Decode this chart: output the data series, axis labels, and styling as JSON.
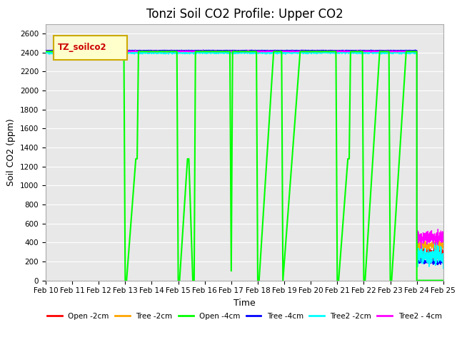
{
  "title": "Tonzi Soil CO2 Profile: Upper CO2",
  "ylabel": "Soil CO2 (ppm)",
  "xlabel": "Time",
  "legend_label": "TZ_soilco2",
  "ylim": [
    0,
    2700
  ],
  "yticks": [
    0,
    200,
    400,
    600,
    800,
    1000,
    1200,
    1400,
    1600,
    1800,
    2000,
    2200,
    2400,
    2600
  ],
  "series": {
    "Open_2cm": {
      "color": "#ff0000",
      "label": "Open -2cm",
      "lw": 1.0
    },
    "Tree_2cm": {
      "color": "#ffa500",
      "label": "Tree -2cm",
      "lw": 1.0
    },
    "Open_4cm": {
      "color": "#00ff00",
      "label": "Open -4cm",
      "lw": 1.5
    },
    "Tree_4cm": {
      "color": "#0000ff",
      "label": "Tree -4cm",
      "lw": 1.0
    },
    "Tree2_2cm": {
      "color": "#00ffff",
      "label": "Tree2 -2cm",
      "lw": 1.0
    },
    "Tree2_4cm": {
      "color": "#ff00ff",
      "label": "Tree2 - 4cm",
      "lw": 1.0
    }
  },
  "x_start": 10,
  "xlim": [
    10,
    25
  ],
  "xtick_labels": [
    "Feb 10",
    "Feb 11",
    "Feb 12",
    "Feb 13",
    "Feb 14",
    "Feb 15",
    "Feb 16",
    "Feb 17",
    "Feb 18",
    "Feb 19",
    "Feb 20",
    "Feb 21",
    "Feb 22",
    "Feb 23",
    "Feb 24",
    "Feb 25"
  ],
  "background_color": "#e8e8e8",
  "title_fontsize": 12,
  "axis_label_fontsize": 9,
  "tick_fontsize": 7.5
}
